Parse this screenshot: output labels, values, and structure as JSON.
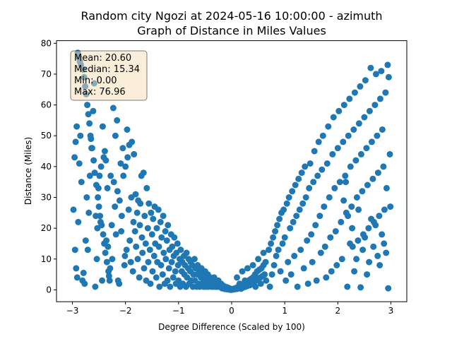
{
  "chart_data": {
    "type": "scatter",
    "title": "Random city Ngozi at 2024-05-16 10:00:00  - azimuth",
    "subtitle": "Graph of Distance in Miles Values",
    "xlabel": "Degree Difference (Scaled by 100)",
    "ylabel": "Distance (Miles)",
    "xlim": [
      -3.3,
      3.3
    ],
    "ylim": [
      -3.85,
      80.85
    ],
    "x_ticks": [
      -3,
      -2,
      -1,
      0,
      1,
      2,
      3
    ],
    "y_ticks": [
      0,
      10,
      20,
      30,
      40,
      50,
      60,
      70,
      80
    ],
    "grid": false,
    "point_color": "#1f77b4",
    "stats_box": {
      "lines": [
        "Mean: 20.60",
        "Median: 15.34",
        "Min: 0.00",
        "Max: 76.96"
      ],
      "background": "#f5deb3",
      "placement": "top-left"
    },
    "points": [
      [
        -2.98,
        26
      ],
      [
        -2.96,
        43
      ],
      [
        -2.94,
        48
      ],
      [
        -2.92,
        53
      ],
      [
        -2.9,
        76.9
      ],
      [
        -2.88,
        75.5
      ],
      [
        -2.86,
        74
      ],
      [
        -2.84,
        73
      ],
      [
        -2.8,
        71.5
      ],
      [
        -2.78,
        69
      ],
      [
        -2.76,
        66
      ],
      [
        -2.74,
        63.5
      ],
      [
        -2.72,
        60
      ],
      [
        -2.7,
        57
      ],
      [
        -2.68,
        54
      ],
      [
        -2.66,
        50
      ],
      [
        -2.64,
        46
      ],
      [
        -2.6,
        42
      ],
      [
        -2.58,
        38
      ],
      [
        -2.55,
        34
      ],
      [
        -2.52,
        30
      ],
      [
        -2.5,
        27
      ],
      [
        -2.48,
        24
      ],
      [
        -2.45,
        21
      ],
      [
        -2.42,
        18
      ],
      [
        -2.4,
        15
      ],
      [
        -2.38,
        12
      ],
      [
        -2.35,
        9
      ],
      [
        -2.32,
        6
      ],
      [
        -2.3,
        3
      ],
      [
        -2.95,
        13
      ],
      [
        -2.93,
        7
      ],
      [
        -2.91,
        4
      ],
      [
        -2.89,
        22
      ],
      [
        -2.87,
        41
      ],
      [
        -2.85,
        50
      ],
      [
        -2.83,
        35
      ],
      [
        -2.81,
        3
      ],
      [
        -2.79,
        5.5
      ],
      [
        -2.77,
        2
      ],
      [
        -2.75,
        16
      ],
      [
        -2.73,
        30
      ],
      [
        -2.71,
        13
      ],
      [
        -2.69,
        25
      ],
      [
        -2.67,
        37
      ],
      [
        -2.65,
        49
      ],
      [
        -2.63,
        46
      ],
      [
        -2.61,
        58
      ],
      [
        -2.59,
        67
      ],
      [
        -2.57,
        1
      ],
      [
        -2.56,
        24
      ],
      [
        -2.54,
        10
      ],
      [
        -2.53,
        20
      ],
      [
        -2.51,
        33
      ],
      [
        -2.49,
        37
      ],
      [
        -2.47,
        22
      ],
      [
        -2.46,
        40
      ],
      [
        -2.44,
        3
      ],
      [
        -2.43,
        53
      ],
      [
        -2.41,
        43
      ],
      [
        -2.39,
        45
      ],
      [
        -2.37,
        42
      ],
      [
        -2.36,
        16
      ],
      [
        -2.34,
        33
      ],
      [
        -2.33,
        14
      ],
      [
        -2.31,
        4.5
      ],
      [
        -2.29,
        7
      ],
      [
        -2.28,
        37
      ],
      [
        -2.26,
        21
      ],
      [
        -2.25,
        10
      ],
      [
        -2.23,
        59
      ],
      [
        -2.22,
        35
      ],
      [
        -2.2,
        27
      ],
      [
        -2.19,
        50
      ],
      [
        -2.18,
        18
      ],
      [
        -2.16,
        55
      ],
      [
        -2.15,
        32
      ],
      [
        -2.14,
        3
      ],
      [
        -2.12,
        2
      ],
      [
        -2.11,
        29
      ],
      [
        -2.09,
        41
      ],
      [
        -2.08,
        19
      ],
      [
        -2.07,
        24
      ],
      [
        -2.05,
        46
      ],
      [
        -2.04,
        37
      ],
      [
        -2.02,
        8
      ],
      [
        -2.01,
        11
      ],
      [
        -2.0,
        40
      ],
      [
        -1.98,
        13
      ],
      [
        -1.97,
        52
      ],
      [
        -1.96,
        43
      ],
      [
        -1.94,
        26
      ],
      [
        -1.93,
        47
      ],
      [
        -1.92,
        16
      ],
      [
        -1.9,
        9
      ],
      [
        -1.89,
        30
      ],
      [
        -1.88,
        48
      ],
      [
        -1.86,
        6
      ],
      [
        -1.85,
        22
      ],
      [
        -1.84,
        44
      ],
      [
        -1.82,
        19
      ],
      [
        -1.81,
        31
      ],
      [
        -1.8,
        14
      ],
      [
        -1.78,
        25
      ],
      [
        -1.77,
        10
      ],
      [
        -1.76,
        29
      ],
      [
        -1.74,
        4
      ],
      [
        -1.73,
        21
      ],
      [
        -1.72,
        28
      ],
      [
        -1.7,
        37
      ],
      [
        -1.69,
        17
      ],
      [
        -1.68,
        12
      ],
      [
        -1.66,
        38
      ],
      [
        -1.65,
        7
      ],
      [
        -1.64,
        24
      ],
      [
        -1.62,
        15
      ],
      [
        -1.61,
        3
      ],
      [
        -1.6,
        33
      ],
      [
        -1.58,
        20
      ],
      [
        -1.57,
        9
      ],
      [
        -1.56,
        28
      ],
      [
        -1.54,
        13
      ],
      [
        -1.53,
        2
      ],
      [
        -1.52,
        25
      ],
      [
        -1.5,
        18
      ],
      [
        -1.49,
        6
      ],
      [
        -1.48,
        23
      ],
      [
        -1.46,
        11
      ],
      [
        -1.45,
        27
      ],
      [
        -1.44,
        15
      ],
      [
        -1.42,
        4
      ],
      [
        -1.41,
        20
      ],
      [
        -1.4,
        9
      ],
      [
        -1.38,
        26
      ],
      [
        -1.37,
        14
      ],
      [
        -1.36,
        1
      ],
      [
        -1.34,
        22
      ],
      [
        -1.33,
        8
      ],
      [
        -1.32,
        17
      ],
      [
        -1.3,
        5
      ],
      [
        -1.29,
        24
      ],
      [
        -1.28,
        12
      ],
      [
        -1.26,
        2
      ],
      [
        -1.25,
        19
      ],
      [
        -1.24,
        10
      ],
      [
        -1.22,
        16
      ],
      [
        -1.21,
        3
      ],
      [
        -1.2,
        21
      ],
      [
        -1.18,
        7
      ],
      [
        -1.17,
        13
      ],
      [
        -1.16,
        1
      ],
      [
        -1.14,
        18
      ],
      [
        -1.13,
        9
      ],
      [
        -1.12,
        14
      ],
      [
        -1.1,
        4
      ],
      [
        -1.09,
        11
      ],
      [
        -1.08,
        17
      ],
      [
        -1.06,
        6
      ],
      [
        -1.05,
        2
      ],
      [
        -1.04,
        12
      ],
      [
        -1.02,
        15
      ],
      [
        -1.01,
        8
      ],
      [
        -1.0,
        3
      ],
      [
        -0.98,
        10
      ],
      [
        -0.97,
        1
      ],
      [
        -0.96,
        13
      ],
      [
        -0.94,
        6
      ],
      [
        -0.93,
        9
      ],
      [
        -0.92,
        2
      ],
      [
        -0.9,
        11
      ],
      [
        -0.89,
        5
      ],
      [
        -0.88,
        8
      ],
      [
        -0.86,
        1
      ],
      [
        -0.85,
        12
      ],
      [
        -0.84,
        4
      ],
      [
        -0.82,
        7
      ],
      [
        -0.81,
        10
      ],
      [
        -0.8,
        2
      ],
      [
        -0.78,
        6
      ],
      [
        -0.77,
        9
      ],
      [
        -0.76,
        3
      ],
      [
        -0.74,
        8
      ],
      [
        -0.73,
        1
      ],
      [
        -0.72,
        5
      ],
      [
        -0.7,
        10
      ],
      [
        -0.69,
        3
      ],
      [
        -0.68,
        7
      ],
      [
        -0.66,
        1
      ],
      [
        -0.65,
        5
      ],
      [
        -0.64,
        8
      ],
      [
        -0.62,
        2
      ],
      [
        -0.61,
        6
      ],
      [
        -0.6,
        1
      ],
      [
        -0.58,
        4
      ],
      [
        -0.57,
        7
      ],
      [
        -0.56,
        2
      ],
      [
        -0.54,
        5
      ],
      [
        -0.53,
        1
      ],
      [
        -0.52,
        3
      ],
      [
        -0.5,
        6
      ],
      [
        -0.49,
        1
      ],
      [
        -0.48,
        4
      ],
      [
        -0.46,
        2
      ],
      [
        -0.45,
        5
      ],
      [
        -0.44,
        1
      ],
      [
        -0.42,
        3
      ],
      [
        -0.41,
        2
      ],
      [
        -0.4,
        4
      ],
      [
        -0.38,
        1
      ],
      [
        -0.37,
        3
      ],
      [
        -0.36,
        1
      ],
      [
        -0.34,
        2
      ],
      [
        -0.33,
        4
      ],
      [
        -0.32,
        1
      ],
      [
        -0.3,
        3
      ],
      [
        -0.29,
        1
      ],
      [
        -0.28,
        2
      ],
      [
        -0.26,
        1
      ],
      [
        -0.25,
        3
      ],
      [
        -0.24,
        1
      ],
      [
        -0.22,
        2
      ],
      [
        -0.21,
        1
      ],
      [
        -0.2,
        2
      ],
      [
        -0.18,
        0.5
      ],
      [
        -0.17,
        1.5
      ],
      [
        -0.16,
        0.5
      ],
      [
        -0.14,
        1
      ],
      [
        -0.13,
        0.3
      ],
      [
        -0.12,
        1
      ],
      [
        -0.1,
        0.5
      ],
      [
        -0.09,
        0.2
      ],
      [
        -0.08,
        0.8
      ],
      [
        -0.06,
        0.3
      ],
      [
        -0.05,
        0.1
      ],
      [
        -0.04,
        0.5
      ],
      [
        -0.02,
        0.1
      ],
      [
        -0.01,
        0.0
      ],
      [
        0.0,
        0.2
      ],
      [
        0.02,
        0.1
      ],
      [
        0.04,
        0.4
      ],
      [
        0.06,
        0.2
      ],
      [
        0.08,
        0.6
      ],
      [
        0.1,
        0.3
      ],
      [
        0.12,
        1
      ],
      [
        0.14,
        0.5
      ],
      [
        0.16,
        1.2
      ],
      [
        0.18,
        0.4
      ],
      [
        0.2,
        1.5
      ],
      [
        0.22,
        0.8
      ],
      [
        0.24,
        2
      ],
      [
        0.26,
        1
      ],
      [
        0.28,
        2.5
      ],
      [
        0.3,
        1.3
      ],
      [
        0.32,
        3
      ],
      [
        0.34,
        1.5
      ],
      [
        0.36,
        3.5
      ],
      [
        0.38,
        2
      ],
      [
        0.4,
        4
      ],
      [
        0.42,
        2.5
      ],
      [
        0.44,
        5
      ],
      [
        0.46,
        3
      ],
      [
        0.48,
        6
      ],
      [
        0.5,
        3.5
      ],
      [
        0.52,
        6.5
      ],
      [
        0.54,
        4
      ],
      [
        0.56,
        7
      ],
      [
        0.58,
        4.5
      ],
      [
        0.6,
        8
      ],
      [
        0.62,
        5
      ],
      [
        0.64,
        9
      ],
      [
        0.1,
        4
      ],
      [
        0.15,
        2
      ],
      [
        0.2,
        6
      ],
      [
        0.25,
        3
      ],
      [
        0.3,
        7
      ],
      [
        0.35,
        2
      ],
      [
        0.4,
        8
      ],
      [
        0.45,
        1
      ],
      [
        0.5,
        10
      ],
      [
        0.55,
        2
      ],
      [
        0.6,
        12
      ],
      [
        0.65,
        3
      ],
      [
        0.7,
        13
      ],
      [
        0.72,
        1
      ],
      [
        0.74,
        15
      ],
      [
        0.76,
        5
      ],
      [
        0.78,
        17
      ],
      [
        0.8,
        8
      ],
      [
        0.82,
        19
      ],
      [
        0.84,
        11
      ],
      [
        0.86,
        21
      ],
      [
        0.88,
        13
      ],
      [
        0.9,
        23
      ],
      [
        0.92,
        6
      ],
      [
        0.94,
        25
      ],
      [
        0.96,
        15
      ],
      [
        0.98,
        26
      ],
      [
        1.0,
        17
      ],
      [
        1.02,
        3
      ],
      [
        1.04,
        28
      ],
      [
        1.06,
        9
      ],
      [
        1.08,
        30
      ],
      [
        1.1,
        20
      ],
      [
        1.12,
        5
      ],
      [
        1.14,
        32
      ],
      [
        1.16,
        22
      ],
      [
        1.18,
        11
      ],
      [
        1.2,
        34
      ],
      [
        1.22,
        24
      ],
      [
        1.24,
        1
      ],
      [
        1.26,
        36
      ],
      [
        1.28,
        26
      ],
      [
        1.3,
        13
      ],
      [
        1.32,
        38
      ],
      [
        1.34,
        28
      ],
      [
        1.36,
        7
      ],
      [
        1.38,
        40
      ],
      [
        1.4,
        30
      ],
      [
        1.42,
        16
      ],
      [
        1.44,
        2
      ],
      [
        1.46,
        33
      ],
      [
        1.48,
        41
      ],
      [
        1.5,
        18
      ],
      [
        1.52,
        9
      ],
      [
        1.54,
        35
      ],
      [
        1.56,
        45
      ],
      [
        1.58,
        21
      ],
      [
        1.6,
        3
      ],
      [
        1.62,
        37
      ],
      [
        1.64,
        48
      ],
      [
        1.66,
        24
      ],
      [
        1.68,
        12
      ],
      [
        1.7,
        39
      ],
      [
        1.72,
        50
      ],
      [
        1.74,
        27
      ],
      [
        1.76,
        14
      ],
      [
        1.78,
        4
      ],
      [
        1.8,
        41
      ],
      [
        1.82,
        53
      ],
      [
        1.84,
        30
      ],
      [
        1.86,
        17
      ],
      [
        1.88,
        6
      ],
      [
        1.9,
        44
      ],
      [
        1.92,
        56
      ],
      [
        1.94,
        33
      ],
      [
        1.96,
        19
      ],
      [
        1.98,
        8
      ],
      [
        2.0,
        46
      ],
      [
        2.02,
        58
      ],
      [
        2.04,
        35
      ],
      [
        2.06,
        22
      ],
      [
        2.08,
        10
      ],
      [
        2.1,
        48
      ],
      [
        2.12,
        60
      ],
      [
        2.14,
        37
      ],
      [
        2.16,
        25
      ],
      [
        2.18,
        1
      ],
      [
        2.2,
        50
      ],
      [
        2.22,
        62
      ],
      [
        2.24,
        40
      ],
      [
        2.26,
        27
      ],
      [
        2.28,
        14
      ],
      [
        2.3,
        52
      ],
      [
        2.32,
        64
      ],
      [
        2.34,
        42
      ],
      [
        2.36,
        30
      ],
      [
        2.38,
        16
      ],
      [
        2.4,
        54
      ],
      [
        2.42,
        66
      ],
      [
        2.44,
        44
      ],
      [
        2.46,
        32
      ],
      [
        2.48,
        18
      ],
      [
        2.5,
        56
      ],
      [
        2.52,
        68
      ],
      [
        2.54,
        46
      ],
      [
        2.56,
        34
      ],
      [
        2.58,
        20
      ],
      [
        2.6,
        58
      ],
      [
        2.62,
        72
      ],
      [
        2.64,
        48
      ],
      [
        2.66,
        36
      ],
      [
        2.68,
        22
      ],
      [
        2.7,
        60
      ],
      [
        2.72,
        70
      ],
      [
        2.74,
        50
      ],
      [
        2.76,
        38
      ],
      [
        2.78,
        24
      ],
      [
        2.8,
        62
      ],
      [
        2.82,
        71
      ],
      [
        2.84,
        52
      ],
      [
        2.86,
        40
      ],
      [
        2.88,
        26
      ],
      [
        2.9,
        64
      ],
      [
        2.92,
        33
      ],
      [
        2.94,
        73
      ],
      [
        2.96,
        69
      ],
      [
        2.98,
        44
      ],
      [
        2.99,
        27
      ],
      [
        2.95,
        0.5
      ],
      [
        2.91,
        12
      ],
      [
        2.87,
        15
      ],
      [
        2.83,
        18
      ],
      [
        2.79,
        8
      ],
      [
        2.75,
        11
      ],
      [
        2.71,
        21
      ],
      [
        2.67,
        14
      ],
      [
        2.63,
        23
      ],
      [
        2.59,
        9
      ],
      [
        2.55,
        5
      ],
      [
        2.51,
        17
      ],
      [
        2.47,
        13
      ],
      [
        2.43,
        0.8
      ],
      [
        2.39,
        26
      ],
      [
        2.35,
        10
      ],
      [
        2.31,
        6
      ],
      [
        2.27,
        20
      ],
      [
        2.23,
        15
      ],
      [
        2.19,
        24
      ],
      [
        2.15,
        35
      ],
      [
        2.11,
        29
      ]
    ]
  }
}
